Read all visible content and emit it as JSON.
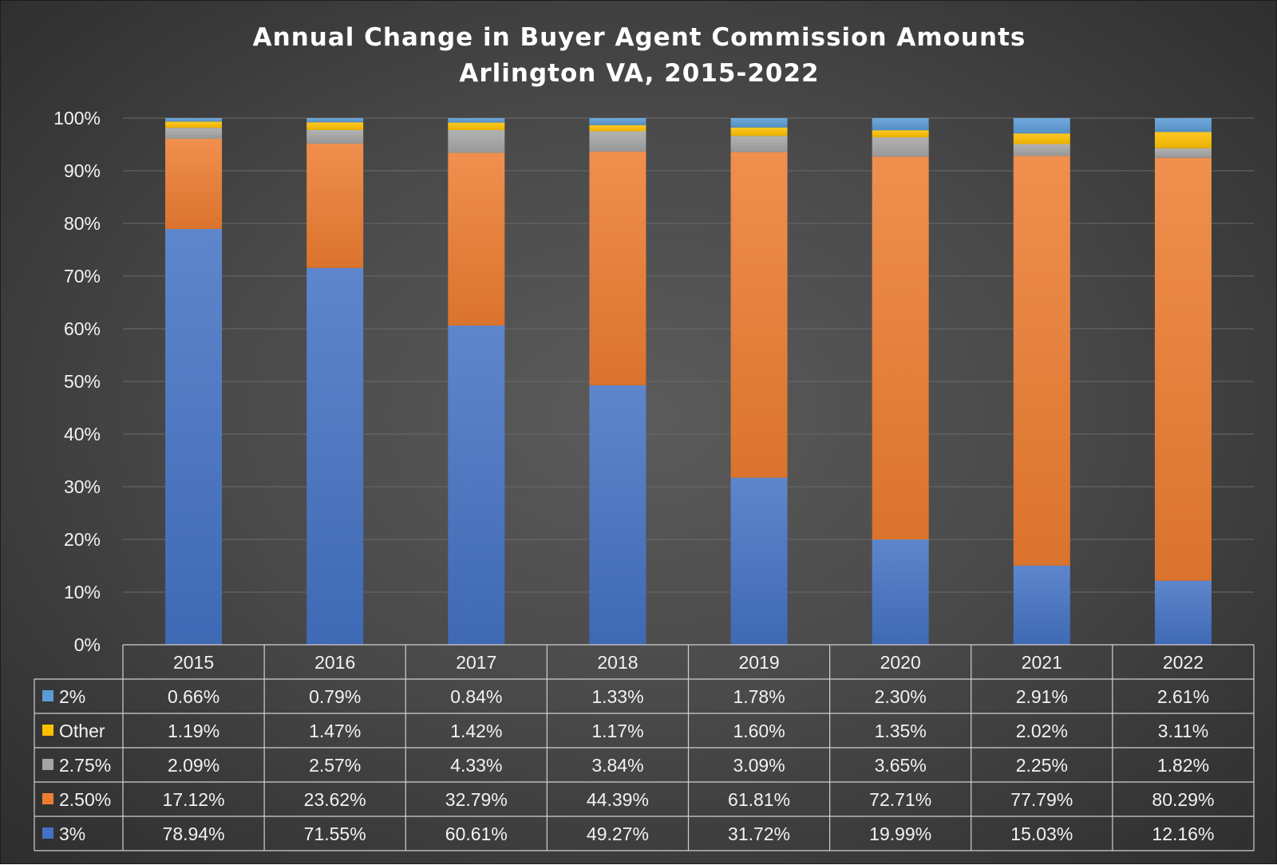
{
  "colors": {
    "3%": "#4472c4",
    "2.50%": "#ed7d31",
    "2.75%": "#a5a5a5",
    "Other": "#ffc000",
    "2%": "#5b9bd5"
  },
  "chart_data": {
    "type": "bar",
    "stacked": true,
    "title": "Annual Change in Buyer Agent Commission Amounts",
    "subtitle": "Arlington VA, 2015-2022",
    "categories": [
      "2015",
      "2016",
      "2017",
      "2018",
      "2019",
      "2020",
      "2021",
      "2022"
    ],
    "ylim": [
      0,
      100
    ],
    "yticks": [
      "0%",
      "10%",
      "20%",
      "30%",
      "40%",
      "50%",
      "60%",
      "70%",
      "80%",
      "90%",
      "100%"
    ],
    "grid": true,
    "legend": "data-table",
    "series": [
      {
        "name": "3%",
        "values": [
          78.94,
          71.55,
          60.61,
          49.27,
          31.72,
          19.99,
          15.03,
          12.16
        ],
        "labels": [
          "78.94%",
          "71.55%",
          "60.61%",
          "49.27%",
          "31.72%",
          "19.99%",
          "15.03%",
          "12.16%"
        ]
      },
      {
        "name": "2.50%",
        "values": [
          17.12,
          23.62,
          32.79,
          44.39,
          61.81,
          72.71,
          77.79,
          80.29
        ],
        "labels": [
          "17.12%",
          "23.62%",
          "32.79%",
          "44.39%",
          "61.81%",
          "72.71%",
          "77.79%",
          "80.29%"
        ]
      },
      {
        "name": "2.75%",
        "values": [
          2.09,
          2.57,
          4.33,
          3.84,
          3.09,
          3.65,
          2.25,
          1.82
        ],
        "labels": [
          "2.09%",
          "2.57%",
          "4.33%",
          "3.84%",
          "3.09%",
          "3.65%",
          "2.25%",
          "1.82%"
        ]
      },
      {
        "name": "Other",
        "values": [
          1.19,
          1.47,
          1.42,
          1.17,
          1.6,
          1.35,
          2.02,
          3.11
        ],
        "labels": [
          "1.19%",
          "1.47%",
          "1.42%",
          "1.17%",
          "1.60%",
          "1.35%",
          "2.02%",
          "3.11%"
        ]
      },
      {
        "name": "2%",
        "values": [
          0.66,
          0.79,
          0.84,
          1.33,
          1.78,
          2.3,
          2.91,
          2.61
        ],
        "labels": [
          "0.66%",
          "0.79%",
          "0.84%",
          "1.33%",
          "1.78%",
          "2.30%",
          "2.91%",
          "2.61%"
        ]
      }
    ],
    "table_row_order": [
      "2%",
      "Other",
      "2.75%",
      "2.50%",
      "3%"
    ]
  }
}
